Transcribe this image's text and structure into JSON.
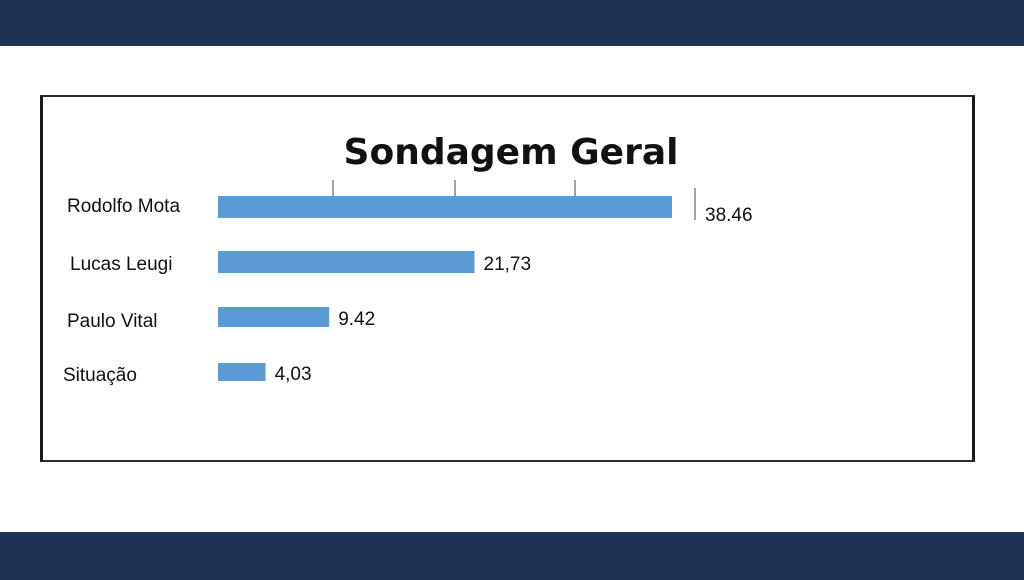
{
  "chart_data": {
    "type": "bar",
    "orientation": "horizontal",
    "title": "Sondagem Geral",
    "categories": [
      "Rodolfo Mota",
      "Lucas Leugi",
      "Paulo Vital",
      "Situação"
    ],
    "values": [
      38.46,
      21.73,
      9.42,
      4.03
    ],
    "value_labels": [
      "38.46",
      "21,73",
      "9.42",
      "4,03"
    ],
    "xlim": [
      0,
      40
    ],
    "xlabel": "",
    "ylabel": "",
    "grid": false,
    "legend": "none",
    "colors": {
      "bar": "#5b9bd5",
      "band": "#1e3254"
    }
  }
}
